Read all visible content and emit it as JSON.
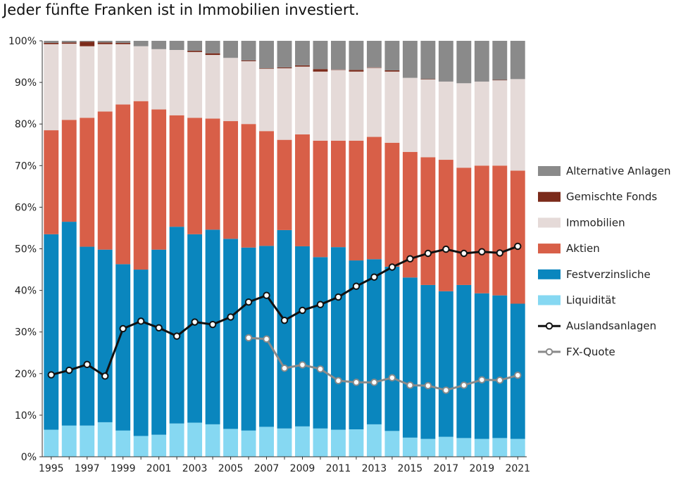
{
  "chart_data": {
    "type": "bar",
    "stacked": true,
    "title": "Jeder fünfte Franken ist in Immobilien investiert.",
    "xlabel": "",
    "ylabel": "",
    "ylim": [
      0,
      100
    ],
    "yticks": [
      "0%",
      "10%",
      "20%",
      "30%",
      "40%",
      "50%",
      "60%",
      "70%",
      "80%",
      "90%",
      "100%"
    ],
    "categories": [
      "1995",
      "1996",
      "1997",
      "1998",
      "1999",
      "2000",
      "2001",
      "2002",
      "2003",
      "2004",
      "2005",
      "2006",
      "2007",
      "2008",
      "2009",
      "2010",
      "2011",
      "2012",
      "2013",
      "2014",
      "2015",
      "2016",
      "2017",
      "2018",
      "2019",
      "2020",
      "2021"
    ],
    "xtick_labels": [
      "1995",
      "",
      "1997",
      "",
      "1999",
      "",
      "2001",
      "",
      "2003",
      "",
      "2005",
      "",
      "2007",
      "",
      "2009",
      "",
      "2011",
      "",
      "2013",
      "",
      "2015",
      "",
      "2017",
      "",
      "2019",
      "",
      "2021"
    ],
    "legend_position": "right",
    "series": [
      {
        "name": "Liquidität",
        "kind": "bar",
        "color": "#86d8f2",
        "values": [
          6.5,
          7.5,
          7.5,
          8.3,
          6.3,
          5,
          5.3,
          8,
          8.2,
          7.8,
          6.7,
          6.3,
          7.2,
          6.8,
          7.3,
          6.8,
          6.5,
          6.6,
          7.8,
          6.2,
          4.6,
          4.3,
          4.8,
          4.5,
          4.3,
          4.5,
          4.3
        ]
      },
      {
        "name": "Festverzinsliche",
        "kind": "bar",
        "color": "#0a86be",
        "values": [
          47,
          49,
          43,
          41.5,
          40,
          40,
          44.5,
          47.3,
          45.3,
          46.8,
          45.7,
          44,
          43.5,
          47.7,
          43.3,
          41.2,
          43.9,
          40.6,
          39.7,
          39.5,
          38.5,
          37,
          35,
          36.8,
          35,
          34.3,
          32.5
        ]
      },
      {
        "name": "Aktien",
        "kind": "bar",
        "color": "#d85f48",
        "values": [
          25,
          24.5,
          31,
          33.2,
          38.4,
          40.5,
          33.7,
          26.8,
          28,
          26.7,
          28.3,
          29.7,
          27.6,
          21.7,
          26.9,
          28,
          25.6,
          28.8,
          29.4,
          29.8,
          30.2,
          30.7,
          31.6,
          28.2,
          30.7,
          31.2,
          32
        ]
      },
      {
        "name": "Immobilien",
        "kind": "bar",
        "color": "#e5dad8",
        "values": [
          20.7,
          18.3,
          17.2,
          16.2,
          14.5,
          13.2,
          14.5,
          15.7,
          15.8,
          15.3,
          15.2,
          15.1,
          15,
          17.2,
          16.3,
          16.6,
          17,
          16.6,
          16.6,
          17.1,
          17.8,
          18.7,
          18.8,
          20.3,
          20.2,
          20.5,
          22
        ]
      },
      {
        "name": "Gemischte Fonds",
        "kind": "bar",
        "color": "#7b2a1a",
        "values": [
          0.3,
          0.3,
          1.1,
          0.4,
          0.3,
          0,
          0,
          0,
          0.3,
          0.4,
          0,
          0.2,
          0.1,
          0.2,
          0.3,
          0.6,
          0.1,
          0.4,
          0.1,
          0.3,
          0,
          0.1,
          0,
          0,
          0,
          0.1,
          0
        ]
      },
      {
        "name": "Alternative Anlagen",
        "kind": "bar",
        "color": "#8a8a8a",
        "values": [
          0.5,
          0.4,
          0.2,
          0.4,
          0.5,
          1.3,
          2,
          2.2,
          2.4,
          3,
          4.1,
          4.7,
          6.6,
          6.4,
          5.9,
          6.8,
          6.9,
          7,
          6.4,
          7.1,
          8.9,
          9.2,
          9.8,
          10.2,
          9.8,
          9.4,
          9.2
        ]
      },
      {
        "name": "Auslandsanlagen",
        "kind": "line",
        "color": "#111111",
        "values": [
          19.7,
          20.8,
          22.2,
          19.4,
          30.8,
          32.6,
          31,
          29,
          32.4,
          31.8,
          33.6,
          37.2,
          38.8,
          32.8,
          35.2,
          36.6,
          38.4,
          41,
          43.2,
          45.6,
          47.6,
          48.9,
          49.9,
          48.9,
          49.3,
          49,
          50.6
        ]
      },
      {
        "name": "FX-Quote",
        "kind": "line",
        "color": "#8a8a8a",
        "values": [
          null,
          null,
          null,
          null,
          null,
          null,
          null,
          null,
          null,
          null,
          null,
          28.6,
          28.3,
          21.3,
          22.1,
          21.1,
          18.3,
          17.9,
          17.9,
          19,
          17.2,
          17.1,
          16,
          17.2,
          18.5,
          18.4,
          19.6
        ]
      }
    ]
  }
}
